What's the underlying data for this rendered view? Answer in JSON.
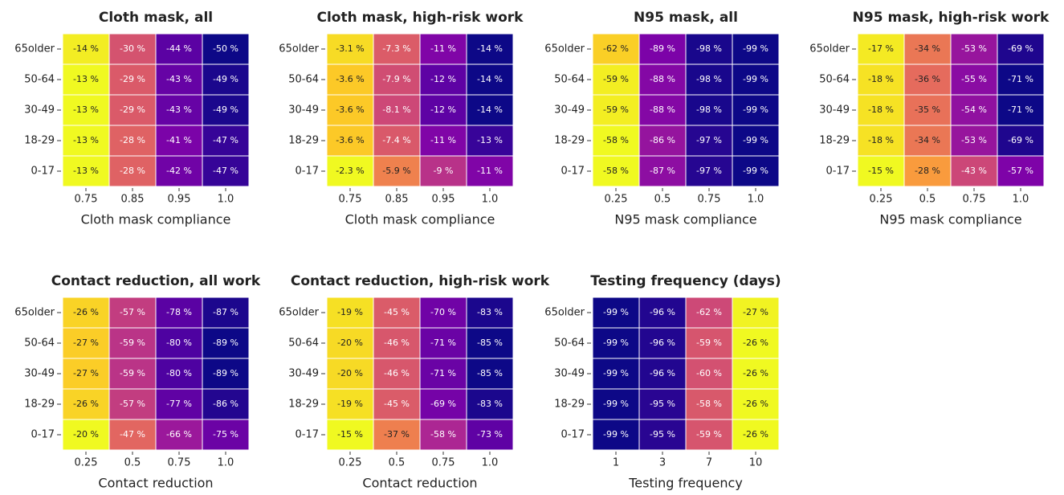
{
  "chart_data": [
    {
      "type": "heatmap",
      "title": "Cloth mask, all",
      "x_label": "Cloth mask compliance",
      "colormap": "plasma",
      "categories": [
        "0.75",
        "0.85",
        "0.95",
        "1.0"
      ],
      "y_categories": [
        "65older",
        "50-64",
        "30-49",
        "18-29",
        "0-17"
      ],
      "values": [
        [
          -14,
          -30,
          -44,
          -50
        ],
        [
          -13,
          -29,
          -43,
          -49
        ],
        [
          -13,
          -29,
          -43,
          -49
        ],
        [
          -13,
          -28,
          -41,
          -47
        ],
        [
          -13,
          -28,
          -42,
          -47
        ]
      ],
      "value_labels": [
        [
          "-14 %",
          "-30 %",
          "-44 %",
          "-50 %"
        ],
        [
          "-13 %",
          "-29 %",
          "-43 %",
          "-49 %"
        ],
        [
          "-13 %",
          "-29 %",
          "-43 %",
          "-49 %"
        ],
        [
          "-13 %",
          "-28 %",
          "-41 %",
          "-47 %"
        ],
        [
          "-13 %",
          "-28 %",
          "-42 %",
          "-47 %"
        ]
      ]
    },
    {
      "type": "heatmap",
      "title": "Cloth mask, high-risk work",
      "x_label": "Cloth mask compliance",
      "colormap": "plasma",
      "categories": [
        "0.75",
        "0.85",
        "0.95",
        "1.0"
      ],
      "y_categories": [
        "65older",
        "50-64",
        "30-49",
        "18-29",
        "0-17"
      ],
      "values": [
        [
          -3.1,
          -7.3,
          -11,
          -14
        ],
        [
          -3.6,
          -7.9,
          -12,
          -14
        ],
        [
          -3.6,
          -8.1,
          -12,
          -14
        ],
        [
          -3.6,
          -7.4,
          -11,
          -13
        ],
        [
          -2.3,
          -5.9,
          -9,
          -11
        ]
      ],
      "value_labels": [
        [
          "-3.1 %",
          "-7.3 %",
          "-11 %",
          "-14 %"
        ],
        [
          "-3.6 %",
          "-7.9 %",
          "-12 %",
          "-14 %"
        ],
        [
          "-3.6 %",
          "-8.1 %",
          "-12 %",
          "-14 %"
        ],
        [
          "-3.6 %",
          "-7.4 %",
          "-11 %",
          "-13 %"
        ],
        [
          "-2.3 %",
          "-5.9 %",
          "-9 %",
          "-11 %"
        ]
      ]
    },
    {
      "type": "heatmap",
      "title": "N95 mask, all",
      "x_label": "N95 mask compliance",
      "colormap": "plasma",
      "categories": [
        "0.25",
        "0.5",
        "0.75",
        "1.0"
      ],
      "y_categories": [
        "65older",
        "50-64",
        "30-49",
        "18-29",
        "0-17"
      ],
      "values": [
        [
          -62,
          -89,
          -98,
          -99
        ],
        [
          -59,
          -88,
          -98,
          -99
        ],
        [
          -59,
          -88,
          -98,
          -99
        ],
        [
          -58,
          -86,
          -97,
          -99
        ],
        [
          -58,
          -87,
          -97,
          -99
        ]
      ],
      "value_labels": [
        [
          "-62 %",
          "-89 %",
          "-98 %",
          "-99 %"
        ],
        [
          "-59 %",
          "-88 %",
          "-98 %",
          "-99 %"
        ],
        [
          "-59 %",
          "-88 %",
          "-98 %",
          "-99 %"
        ],
        [
          "-58 %",
          "-86 %",
          "-97 %",
          "-99 %"
        ],
        [
          "-58 %",
          "-87 %",
          "-97 %",
          "-99 %"
        ]
      ]
    },
    {
      "type": "heatmap",
      "title": "N95 mask, high-risk work",
      "x_label": "N95 mask compliance",
      "colormap": "plasma",
      "categories": [
        "0.25",
        "0.5",
        "0.75",
        "1.0"
      ],
      "y_categories": [
        "65older",
        "50-64",
        "30-49",
        "18-29",
        "0-17"
      ],
      "values": [
        [
          -17,
          -34,
          -53,
          -69
        ],
        [
          -18,
          -36,
          -55,
          -71
        ],
        [
          -18,
          -35,
          -54,
          -71
        ],
        [
          -18,
          -34,
          -53,
          -69
        ],
        [
          -15,
          -28,
          -43,
          -57
        ]
      ],
      "value_labels": [
        [
          "-17 %",
          "-34 %",
          "-53 %",
          "-69 %"
        ],
        [
          "-18 %",
          "-36 %",
          "-55 %",
          "-71 %"
        ],
        [
          "-18 %",
          "-35 %",
          "-54 %",
          "-71 %"
        ],
        [
          "-18 %",
          "-34 %",
          "-53 %",
          "-69 %"
        ],
        [
          "-15 %",
          "-28 %",
          "-43 %",
          "-57 %"
        ]
      ]
    },
    {
      "type": "heatmap",
      "title": "Contact reduction, all work",
      "x_label": "Contact reduction",
      "colormap": "plasma",
      "categories": [
        "0.25",
        "0.5",
        "0.75",
        "1.0"
      ],
      "y_categories": [
        "65older",
        "50-64",
        "30-49",
        "18-29",
        "0-17"
      ],
      "values": [
        [
          -26,
          -57,
          -78,
          -87
        ],
        [
          -27,
          -59,
          -80,
          -89
        ],
        [
          -27,
          -59,
          -80,
          -89
        ],
        [
          -26,
          -57,
          -77,
          -86
        ],
        [
          -20,
          -47,
          -66,
          -75
        ]
      ],
      "value_labels": [
        [
          "-26 %",
          "-57 %",
          "-78 %",
          "-87 %"
        ],
        [
          "-27 %",
          "-59 %",
          "-80 %",
          "-89 %"
        ],
        [
          "-27 %",
          "-59 %",
          "-80 %",
          "-89 %"
        ],
        [
          "-26 %",
          "-57 %",
          "-77 %",
          "-86 %"
        ],
        [
          "-20 %",
          "-47 %",
          "-66 %",
          "-75 %"
        ]
      ]
    },
    {
      "type": "heatmap",
      "title": "Contact reduction, high-risk work",
      "x_label": "Contact reduction",
      "colormap": "plasma",
      "categories": [
        "0.25",
        "0.5",
        "0.75",
        "1.0"
      ],
      "y_categories": [
        "65older",
        "50-64",
        "30-49",
        "18-29",
        "0-17"
      ],
      "values": [
        [
          -19,
          -45,
          -70,
          -83
        ],
        [
          -20,
          -46,
          -71,
          -85
        ],
        [
          -20,
          -46,
          -71,
          -85
        ],
        [
          -19,
          -45,
          -69,
          -83
        ],
        [
          -15,
          -37,
          -58,
          -73
        ]
      ],
      "value_labels": [
        [
          "-19 %",
          "-45 %",
          "-70 %",
          "-83 %"
        ],
        [
          "-20 %",
          "-46 %",
          "-71 %",
          "-85 %"
        ],
        [
          "-20 %",
          "-46 %",
          "-71 %",
          "-85 %"
        ],
        [
          "-19 %",
          "-45 %",
          "-69 %",
          "-83 %"
        ],
        [
          "-15 %",
          "-37 %",
          "-58 %",
          "-73 %"
        ]
      ]
    },
    {
      "type": "heatmap",
      "title": "Testing frequency (days)",
      "x_label": "Testing frequency",
      "colormap": "plasma",
      "categories": [
        "1",
        "3",
        "7",
        "10"
      ],
      "y_categories": [
        "65older",
        "50-64",
        "30-49",
        "18-29",
        "0-17"
      ],
      "values": [
        [
          -99,
          -96,
          -62,
          -27
        ],
        [
          -99,
          -96,
          -59,
          -26
        ],
        [
          -99,
          -96,
          -60,
          -26
        ],
        [
          -99,
          -95,
          -58,
          -26
        ],
        [
          -99,
          -95,
          -59,
          -26
        ]
      ],
      "value_labels": [
        [
          "-99 %",
          "-96 %",
          "-62 %",
          "-27 %"
        ],
        [
          "-99 %",
          "-96 %",
          "-59 %",
          "-26 %"
        ],
        [
          "-99 %",
          "-96 %",
          "-60 %",
          "-26 %"
        ],
        [
          "-99 %",
          "-95 %",
          "-58 %",
          "-26 %"
        ],
        [
          "-99 %",
          "-95 %",
          "-59 %",
          "-26 %"
        ]
      ]
    }
  ]
}
